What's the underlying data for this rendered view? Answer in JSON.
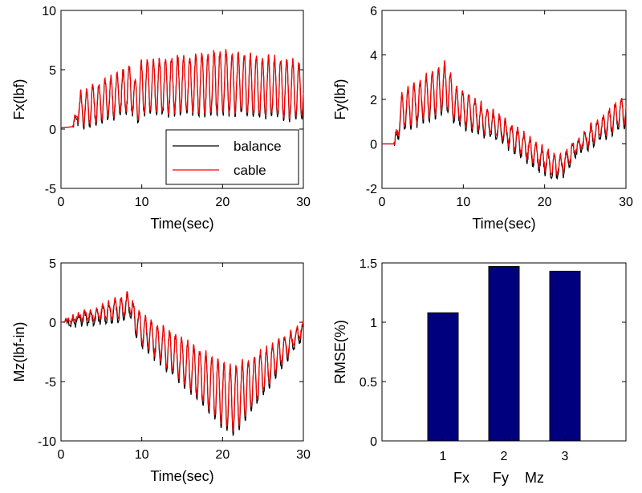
{
  "colors": {
    "balance": "#000000",
    "cable": "#ff0000",
    "bar": "#00007f",
    "axis": "#000000"
  },
  "chart_data": [
    {
      "id": "fx",
      "type": "line",
      "xlabel": "Time(sec)",
      "ylabel": "Fx(lbf)",
      "xlim": [
        0,
        30
      ],
      "ylim": [
        -5,
        10
      ],
      "xticks": [
        "0",
        "10",
        "20",
        "30"
      ],
      "yticks": [
        "-5",
        "0",
        "5",
        "10"
      ],
      "legend": {
        "position": "bottom-right",
        "entries": [
          "balance",
          "cable"
        ]
      },
      "signal": {
        "t_start": 1.5,
        "period": 0.75,
        "noise": 0.3,
        "base": [
          [
            0,
            0.1
          ],
          [
            1.5,
            0.2
          ],
          [
            2,
            1.5
          ],
          [
            8.8,
            3.5
          ],
          [
            9.2,
            2.0
          ],
          [
            10,
            3.5
          ],
          [
            20,
            4.0
          ],
          [
            30,
            3.2
          ]
        ],
        "amp": [
          [
            0,
            0
          ],
          [
            1.5,
            0
          ],
          [
            2.5,
            1.5
          ],
          [
            8,
            1.8
          ],
          [
            10,
            2.2
          ],
          [
            20,
            2.6
          ],
          [
            30,
            2.4
          ]
        ]
      },
      "series": [
        {
          "name": "balance",
          "offset": -0.15
        },
        {
          "name": "cable",
          "offset": 0.1
        }
      ]
    },
    {
      "id": "fy",
      "type": "line",
      "xlabel": "Time(sec)",
      "ylabel": "Fy(lbf)",
      "xlim": [
        0,
        30
      ],
      "ylim": [
        -2,
        6
      ],
      "xticks": [
        "0",
        "10",
        "20",
        "30"
      ],
      "yticks": [
        "-2",
        "0",
        "2",
        "4",
        "6"
      ],
      "signal": {
        "t_start": 1.5,
        "period": 0.75,
        "noise": 0.15,
        "base": [
          [
            0,
            0
          ],
          [
            1.5,
            0
          ],
          [
            2.5,
            1.5
          ],
          [
            8,
            2.6
          ],
          [
            9,
            1.8
          ],
          [
            15,
            0.6
          ],
          [
            21,
            -1.0
          ],
          [
            22,
            -1.0
          ],
          [
            24,
            -0.1
          ],
          [
            30,
            1.6
          ]
        ],
        "amp": [
          [
            0,
            0
          ],
          [
            1.5,
            0
          ],
          [
            2.5,
            0.8
          ],
          [
            8,
            1.1
          ],
          [
            9,
            0.8
          ],
          [
            15,
            0.5
          ],
          [
            21,
            0.5
          ],
          [
            24,
            0.3
          ],
          [
            30,
            0.7
          ]
        ]
      },
      "series": [
        {
          "name": "balance",
          "offset": -0.12
        },
        {
          "name": "cable",
          "offset": 0.05
        }
      ]
    },
    {
      "id": "mz",
      "type": "line",
      "xlabel": "Time(sec)",
      "ylabel": "Mz(lbf-in)",
      "xlim": [
        0,
        30
      ],
      "ylim": [
        -10,
        5
      ],
      "xticks": [
        "0",
        "10",
        "20",
        "30"
      ],
      "yticks": [
        "-10",
        "-5",
        "0",
        "5"
      ],
      "signal": {
        "t_start": 0.5,
        "period": 0.75,
        "noise": 0.25,
        "base": [
          [
            0,
            0
          ],
          [
            1,
            0.1
          ],
          [
            8,
            1.3
          ],
          [
            8.5,
            1.8
          ],
          [
            9,
            0.5
          ],
          [
            10,
            -0.6
          ],
          [
            15,
            -3.2
          ],
          [
            20,
            -6.0
          ],
          [
            21.5,
            -6.5
          ],
          [
            25,
            -4.2
          ],
          [
            30,
            -0.5
          ]
        ],
        "amp": [
          [
            0,
            0
          ],
          [
            1,
            0.2
          ],
          [
            8,
            0.9
          ],
          [
            10,
            1.2
          ],
          [
            15,
            1.8
          ],
          [
            20,
            2.6
          ],
          [
            22,
            2.7
          ],
          [
            25,
            1.8
          ],
          [
            30,
            0.4
          ]
        ]
      },
      "series": [
        {
          "name": "balance",
          "offset": -0.25
        },
        {
          "name": "cable",
          "offset": 0.1
        }
      ]
    },
    {
      "id": "rmse",
      "type": "bar",
      "ylabel": "RMSE(%)",
      "categories": [
        "1",
        "2",
        "3"
      ],
      "category_names": [
        "Fx",
        "Fy",
        "Mz"
      ],
      "values": [
        1.08,
        1.47,
        1.43
      ],
      "xlim": [
        0,
        4
      ],
      "ylim": [
        0,
        1.5
      ],
      "yticks": [
        "0",
        "0.5",
        "1",
        "1.5"
      ]
    }
  ]
}
